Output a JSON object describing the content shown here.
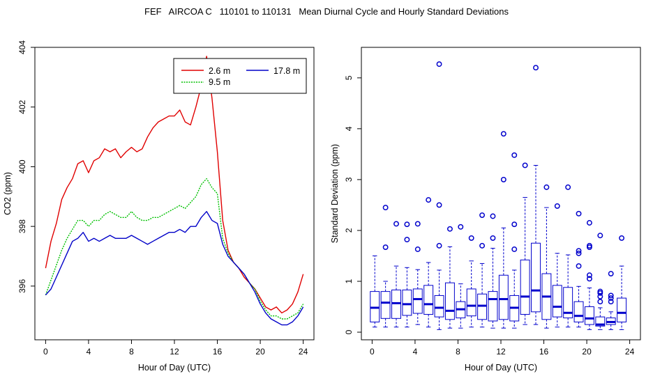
{
  "page_title": "FEF   AIRCOA C   110101 to 110131   Mean Diurnal Cycle and Hourly Standard Deviations",
  "chart_data": [
    {
      "type": "line",
      "xlabel": "Hour of Day (UTC)",
      "ylabel": "CO2 (ppm)",
      "xlim": [
        -1,
        25
      ],
      "ylim": [
        394.2,
        404
      ],
      "xticks": [
        0,
        4,
        8,
        12,
        16,
        20,
        24
      ],
      "yticks": [
        396,
        398,
        400,
        402,
        404
      ],
      "legend_position": "top-right",
      "series": [
        {
          "name": "2.6 m",
          "color": "#e00000",
          "line_style": "solid",
          "x": [
            0,
            0.5,
            1,
            1.5,
            2,
            2.5,
            3,
            3.5,
            4,
            4.5,
            5,
            5.5,
            6,
            6.5,
            7,
            7.5,
            8,
            8.5,
            9,
            9.5,
            10,
            10.5,
            11,
            11.5,
            12,
            12.5,
            13,
            13.5,
            14,
            14.5,
            15,
            15.5,
            16,
            16.5,
            17,
            17.5,
            18,
            18.5,
            19,
            19.5,
            20,
            20.5,
            21,
            21.5,
            22,
            22.5,
            23,
            23.5,
            24
          ],
          "values": [
            396.6,
            397.5,
            398.1,
            398.9,
            399.3,
            399.6,
            400.1,
            400.2,
            399.8,
            400.2,
            400.3,
            400.6,
            400.5,
            400.6,
            400.3,
            400.5,
            400.65,
            400.5,
            400.6,
            401.0,
            401.3,
            401.5,
            401.6,
            401.7,
            401.7,
            401.9,
            401.5,
            401.4,
            402.0,
            402.7,
            403.7,
            402.3,
            400.5,
            398.2,
            397.2,
            396.8,
            396.6,
            396.3,
            396.1,
            395.9,
            395.6,
            395.3,
            395.2,
            395.3,
            395.1,
            395.2,
            395.4,
            395.8,
            396.4
          ]
        },
        {
          "name": "9.5 m",
          "color": "#00c000",
          "line_style": "dotted",
          "x": [
            0,
            0.5,
            1,
            1.5,
            2,
            2.5,
            3,
            3.5,
            4,
            4.5,
            5,
            5.5,
            6,
            6.5,
            7,
            7.5,
            8,
            8.5,
            9,
            9.5,
            10,
            10.5,
            11,
            11.5,
            12,
            12.5,
            13,
            13.5,
            14,
            14.5,
            15,
            15.5,
            16,
            16.5,
            17,
            17.5,
            18,
            18.5,
            19,
            19.5,
            20,
            20.5,
            21,
            21.5,
            22,
            22.5,
            23,
            23.5,
            24
          ],
          "values": [
            395.7,
            396.2,
            396.7,
            397.2,
            397.6,
            397.9,
            398.2,
            398.2,
            398.0,
            398.2,
            398.2,
            398.4,
            398.5,
            398.4,
            398.3,
            398.3,
            398.5,
            398.3,
            398.2,
            398.2,
            398.3,
            398.3,
            398.4,
            398.5,
            398.6,
            398.7,
            398.6,
            398.8,
            399.0,
            399.4,
            399.6,
            399.3,
            399.1,
            397.6,
            397.1,
            396.8,
            396.6,
            396.4,
            396.1,
            395.9,
            395.5,
            395.2,
            395.0,
            395.0,
            394.9,
            394.9,
            395.0,
            395.1,
            395.4
          ]
        },
        {
          "name": "17.8 m",
          "color": "#0000c8",
          "line_style": "solid",
          "x": [
            0,
            0.5,
            1,
            1.5,
            2,
            2.5,
            3,
            3.5,
            4,
            4.5,
            5,
            5.5,
            6,
            6.5,
            7,
            7.5,
            8,
            8.5,
            9,
            9.5,
            10,
            10.5,
            11,
            11.5,
            12,
            12.5,
            13,
            13.5,
            14,
            14.5,
            15,
            15.5,
            16,
            16.5,
            17,
            17.5,
            18,
            18.5,
            19,
            19.5,
            20,
            20.5,
            21,
            21.5,
            22,
            22.5,
            23,
            23.5,
            24
          ],
          "values": [
            395.7,
            395.9,
            396.3,
            396.7,
            397.1,
            397.5,
            397.6,
            397.8,
            397.5,
            397.6,
            397.5,
            397.6,
            397.7,
            397.6,
            397.6,
            397.6,
            397.7,
            397.6,
            397.5,
            397.4,
            397.5,
            397.6,
            397.7,
            397.8,
            397.8,
            397.9,
            397.8,
            398.0,
            398.0,
            398.3,
            398.5,
            398.2,
            398.1,
            397.4,
            397.0,
            396.8,
            396.6,
            396.4,
            396.1,
            395.8,
            395.4,
            395.1,
            394.9,
            394.8,
            394.7,
            394.7,
            394.8,
            395.0,
            395.3
          ]
        }
      ]
    },
    {
      "type": "box",
      "xlabel": "Hour of Day (UTC)",
      "ylabel": "Standard Deviation (ppm)",
      "xlim": [
        -1,
        25
      ],
      "ylim": [
        -0.15,
        5.6
      ],
      "xticks": [
        0,
        4,
        8,
        12,
        16,
        20,
        24
      ],
      "yticks": [
        0,
        1,
        2,
        3,
        4,
        5
      ],
      "color": "#0000cc",
      "boxes": [
        {
          "x": 0.25,
          "min": 0.1,
          "q1": 0.2,
          "median": 0.48,
          "q3": 0.8,
          "max": 1.5,
          "outliers": []
        },
        {
          "x": 1.25,
          "min": 0.1,
          "q1": 0.27,
          "median": 0.58,
          "q3": 0.8,
          "max": 1.0,
          "outliers": [
            1.67,
            2.45
          ]
        },
        {
          "x": 2.25,
          "min": 0.1,
          "q1": 0.27,
          "median": 0.57,
          "q3": 0.83,
          "max": 1.3,
          "outliers": [
            2.13
          ]
        },
        {
          "x": 3.25,
          "min": 0.1,
          "q1": 0.33,
          "median": 0.55,
          "q3": 0.83,
          "max": 1.27,
          "outliers": [
            1.82,
            2.12
          ]
        },
        {
          "x": 4.25,
          "min": 0.15,
          "q1": 0.37,
          "median": 0.65,
          "q3": 0.85,
          "max": 1.23,
          "outliers": [
            1.63,
            2.13
          ]
        },
        {
          "x": 5.25,
          "min": 0.1,
          "q1": 0.35,
          "median": 0.55,
          "q3": 0.92,
          "max": 1.37,
          "outliers": [
            2.6
          ]
        },
        {
          "x": 6.25,
          "min": 0.05,
          "q1": 0.3,
          "median": 0.48,
          "q3": 0.72,
          "max": 1.22,
          "outliers": [
            1.7,
            2.5,
            5.27
          ]
        },
        {
          "x": 7.25,
          "min": 0.08,
          "q1": 0.25,
          "median": 0.42,
          "q3": 0.97,
          "max": 1.68,
          "outliers": [
            2.03
          ]
        },
        {
          "x": 8.25,
          "min": 0.08,
          "q1": 0.28,
          "median": 0.45,
          "q3": 0.6,
          "max": 0.95,
          "outliers": [
            2.07
          ]
        },
        {
          "x": 9.25,
          "min": 0.1,
          "q1": 0.32,
          "median": 0.52,
          "q3": 0.85,
          "max": 1.4,
          "outliers": [
            1.85
          ]
        },
        {
          "x": 10.25,
          "min": 0.1,
          "q1": 0.25,
          "median": 0.52,
          "q3": 0.75,
          "max": 1.35,
          "outliers": [
            1.7,
            2.3
          ]
        },
        {
          "x": 11.25,
          "min": 0.08,
          "q1": 0.22,
          "median": 0.65,
          "q3": 0.8,
          "max": 1.65,
          "outliers": [
            1.85,
            2.28
          ]
        },
        {
          "x": 12.25,
          "min": 0.08,
          "q1": 0.25,
          "median": 0.65,
          "q3": 1.12,
          "max": 2.05,
          "outliers": [
            3.0,
            3.9
          ]
        },
        {
          "x": 13.25,
          "min": 0.08,
          "q1": 0.22,
          "median": 0.48,
          "q3": 0.72,
          "max": 1.22,
          "outliers": [
            1.63,
            2.12,
            3.48
          ]
        },
        {
          "x": 14.25,
          "min": 0.15,
          "q1": 0.35,
          "median": 0.7,
          "q3": 1.42,
          "max": 2.65,
          "outliers": [
            3.28
          ]
        },
        {
          "x": 15.25,
          "min": 0.15,
          "q1": 0.4,
          "median": 0.82,
          "q3": 1.75,
          "max": 3.28,
          "outliers": [
            5.2
          ]
        },
        {
          "x": 16.25,
          "min": 0.08,
          "q1": 0.25,
          "median": 0.7,
          "q3": 1.15,
          "max": 2.45,
          "outliers": [
            2.85
          ]
        },
        {
          "x": 17.25,
          "min": 0.1,
          "q1": 0.3,
          "median": 0.5,
          "q3": 0.92,
          "max": 1.55,
          "outliers": [
            2.48
          ]
        },
        {
          "x": 18.25,
          "min": 0.1,
          "q1": 0.28,
          "median": 0.38,
          "q3": 0.88,
          "max": 1.52,
          "outliers": [
            2.85
          ]
        },
        {
          "x": 19.25,
          "min": 0.1,
          "q1": 0.2,
          "median": 0.32,
          "q3": 0.6,
          "max": 0.9,
          "outliers": [
            1.3,
            1.55,
            1.6,
            2.33
          ]
        },
        {
          "x": 20.25,
          "min": 0.05,
          "q1": 0.15,
          "median": 0.27,
          "q3": 0.5,
          "max": 0.87,
          "outliers": [
            1.05,
            1.12,
            1.67,
            1.7,
            2.15
          ]
        },
        {
          "x": 21.25,
          "min": 0.05,
          "q1": 0.12,
          "median": 0.15,
          "q3": 0.3,
          "max": 0.48,
          "outliers": [
            0.6,
            0.7,
            0.77,
            0.8,
            1.9
          ]
        },
        {
          "x": 22.25,
          "min": 0.05,
          "q1": 0.15,
          "median": 0.2,
          "q3": 0.28,
          "max": 0.4,
          "outliers": [
            0.6,
            0.67,
            0.72,
            1.15
          ]
        },
        {
          "x": 23.25,
          "min": 0.05,
          "q1": 0.2,
          "median": 0.38,
          "q3": 0.67,
          "max": 1.3,
          "outliers": [
            1.85
          ]
        }
      ]
    }
  ]
}
